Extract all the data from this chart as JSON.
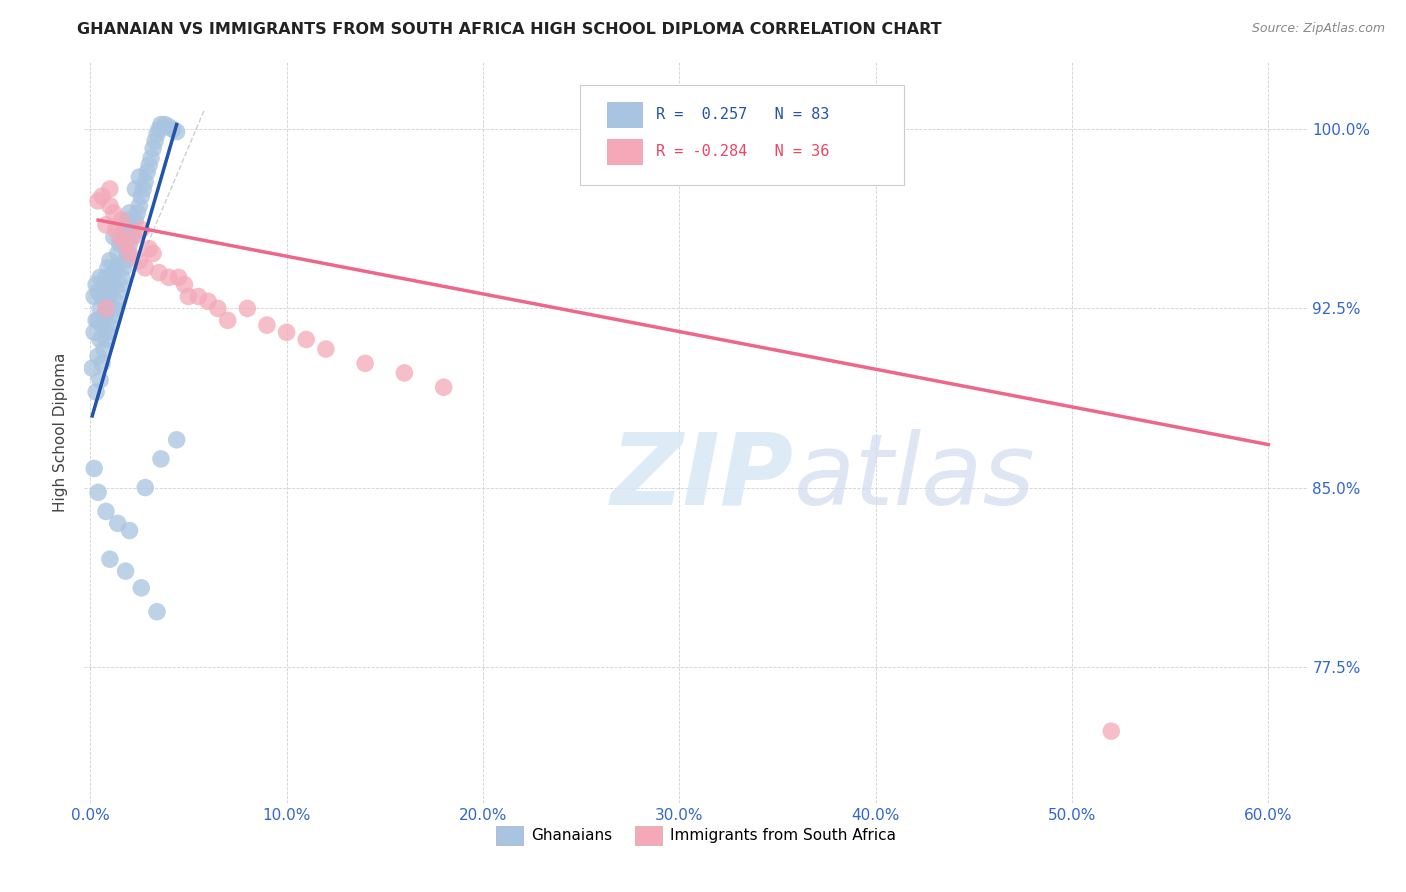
{
  "title": "GHANAIAN VS IMMIGRANTS FROM SOUTH AFRICA HIGH SCHOOL DIPLOMA CORRELATION CHART",
  "source": "Source: ZipAtlas.com",
  "ylabel": "High School Diploma",
  "blue_color": "#A8C4E0",
  "pink_color": "#F4A8B8",
  "blue_line_color": "#2255AA",
  "pink_line_color": "#EE6688",
  "xlim": [
    -0.003,
    0.62
  ],
  "ylim": [
    0.718,
    1.028
  ],
  "xtick_vals": [
    0.0,
    0.1,
    0.2,
    0.3,
    0.4,
    0.5,
    0.6
  ],
  "xtick_labels": [
    "0.0%",
    "10.0%",
    "20.0%",
    "30.0%",
    "40.0%",
    "50.0%",
    "60.0%"
  ],
  "ytick_vals": [
    0.775,
    0.85,
    0.925,
    1.0
  ],
  "ytick_labels": [
    "77.5%",
    "85.0%",
    "92.5%",
    "100.0%"
  ],
  "blue_x": [
    0.001,
    0.002,
    0.002,
    0.003,
    0.003,
    0.003,
    0.004,
    0.004,
    0.004,
    0.005,
    0.005,
    0.005,
    0.005,
    0.006,
    0.006,
    0.006,
    0.007,
    0.007,
    0.007,
    0.008,
    0.008,
    0.008,
    0.009,
    0.009,
    0.009,
    0.01,
    0.01,
    0.01,
    0.011,
    0.011,
    0.012,
    0.012,
    0.012,
    0.013,
    0.013,
    0.014,
    0.014,
    0.015,
    0.015,
    0.016,
    0.016,
    0.017,
    0.017,
    0.018,
    0.018,
    0.019,
    0.019,
    0.02,
    0.02,
    0.021,
    0.022,
    0.023,
    0.023,
    0.024,
    0.025,
    0.025,
    0.026,
    0.027,
    0.028,
    0.029,
    0.03,
    0.031,
    0.032,
    0.033,
    0.034,
    0.035,
    0.036,
    0.038,
    0.04,
    0.042,
    0.044,
    0.002,
    0.004,
    0.008,
    0.014,
    0.02,
    0.028,
    0.036,
    0.044,
    0.01,
    0.018,
    0.026,
    0.034
  ],
  "blue_y": [
    0.9,
    0.915,
    0.93,
    0.89,
    0.92,
    0.935,
    0.905,
    0.92,
    0.932,
    0.895,
    0.912,
    0.925,
    0.938,
    0.902,
    0.918,
    0.93,
    0.908,
    0.922,
    0.935,
    0.912,
    0.925,
    0.938,
    0.915,
    0.928,
    0.942,
    0.918,
    0.932,
    0.945,
    0.922,
    0.935,
    0.925,
    0.94,
    0.955,
    0.928,
    0.942,
    0.932,
    0.948,
    0.935,
    0.952,
    0.938,
    0.955,
    0.942,
    0.958,
    0.945,
    0.96,
    0.948,
    0.962,
    0.952,
    0.965,
    0.955,
    0.958,
    0.962,
    0.975,
    0.965,
    0.968,
    0.98,
    0.972,
    0.975,
    0.978,
    0.982,
    0.985,
    0.988,
    0.992,
    0.995,
    0.998,
    1.0,
    1.002,
    1.002,
    1.001,
    1.0,
    0.999,
    0.858,
    0.848,
    0.84,
    0.835,
    0.832,
    0.85,
    0.862,
    0.87,
    0.82,
    0.815,
    0.808,
    0.798
  ],
  "pink_x": [
    0.004,
    0.006,
    0.008,
    0.01,
    0.01,
    0.012,
    0.013,
    0.015,
    0.016,
    0.018,
    0.02,
    0.022,
    0.025,
    0.026,
    0.028,
    0.03,
    0.032,
    0.035,
    0.04,
    0.045,
    0.048,
    0.05,
    0.055,
    0.06,
    0.065,
    0.07,
    0.08,
    0.09,
    0.1,
    0.11,
    0.12,
    0.14,
    0.16,
    0.18,
    0.52,
    0.008
  ],
  "pink_y": [
    0.97,
    0.972,
    0.96,
    0.968,
    0.975,
    0.965,
    0.958,
    0.955,
    0.962,
    0.952,
    0.948,
    0.955,
    0.945,
    0.958,
    0.942,
    0.95,
    0.948,
    0.94,
    0.938,
    0.938,
    0.935,
    0.93,
    0.93,
    0.928,
    0.925,
    0.92,
    0.925,
    0.918,
    0.915,
    0.912,
    0.908,
    0.902,
    0.898,
    0.892,
    0.748,
    0.925
  ],
  "blue_trendline_x": [
    0.001,
    0.044
  ],
  "blue_trendline_y": [
    0.88,
    1.002
  ],
  "pink_trendline_x": [
    0.004,
    0.6
  ],
  "pink_trendline_y": [
    0.962,
    0.868
  ],
  "ref_line_x": [
    0.0,
    0.058
  ],
  "ref_line_y": [
    0.895,
    1.008
  ]
}
